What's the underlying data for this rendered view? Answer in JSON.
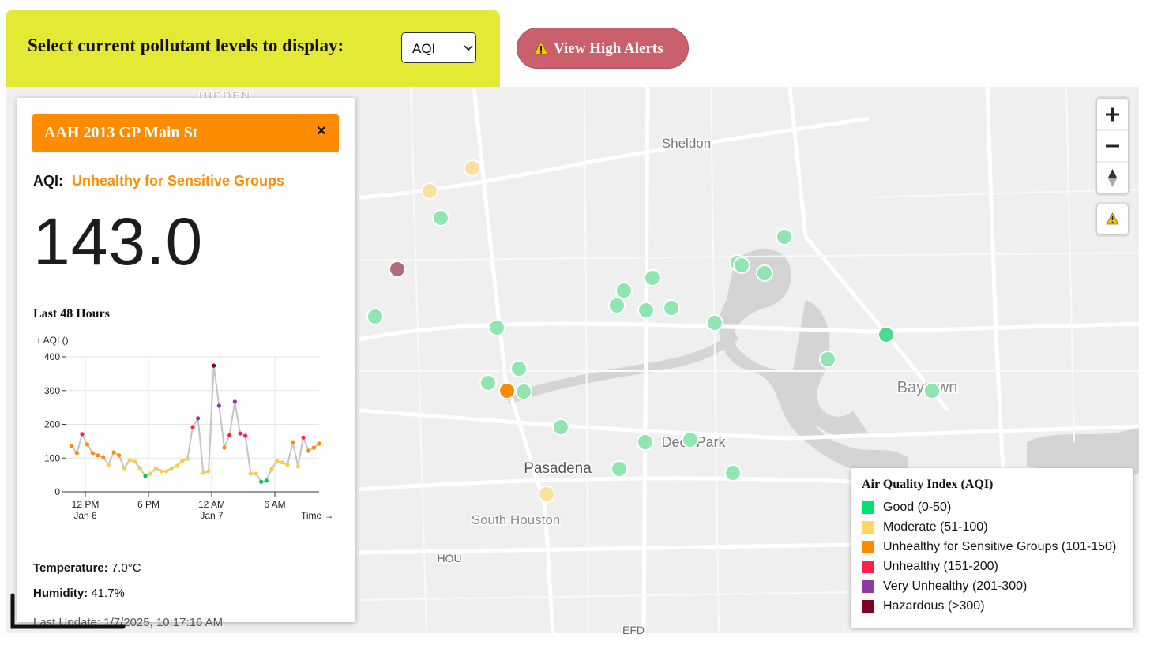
{
  "header": {
    "prompt": "Select current pollutant levels to display:",
    "selected": "AQI",
    "alerts_button": "View High Alerts"
  },
  "map": {
    "labels": [
      "HIDDEN",
      "Sheldon",
      "Baytown",
      "Deer Park",
      "Pasadena",
      "South Houston",
      "HOU",
      "EFD"
    ]
  },
  "panel": {
    "station": "AAH 2013 GP Main St",
    "close": "×",
    "metric_label": "AQI:",
    "category": "Unhealthy for Sensitive Groups",
    "value": "143.0",
    "history_title": "Last 48 Hours",
    "chart_data": {
      "type": "line",
      "y_label": "↑ AQI ()",
      "x_label": "Time →",
      "line_color": "#c4c4c4",
      "grid": true,
      "x": [
        10.7,
        11.2,
        11.7,
        12.2,
        12.7,
        13.2,
        13.7,
        14.2,
        14.7,
        15.2,
        15.7,
        16.2,
        16.7,
        17.2,
        17.7,
        18.2,
        18.7,
        19.2,
        19.7,
        20.2,
        20.7,
        21.2,
        21.7,
        22.2,
        22.7,
        23.2,
        23.7,
        24.2,
        24.7,
        25.2,
        25.7,
        26.2,
        26.7,
        27.2,
        27.7,
        28.2,
        28.7,
        29.2,
        29.7,
        30.2,
        30.7,
        31.2,
        31.7,
        32.2,
        32.7,
        33.2,
        33.7,
        34.2
      ],
      "values": [
        136,
        115,
        171,
        140,
        115,
        108,
        103,
        80,
        117,
        108,
        70,
        94,
        89,
        70,
        47,
        54,
        70,
        61,
        61,
        70,
        77,
        91,
        98,
        192,
        218,
        56,
        61,
        374,
        255,
        131,
        168,
        267,
        173,
        166,
        54,
        54,
        30,
        33,
        68,
        91,
        87,
        80,
        147,
        75,
        161,
        122,
        131,
        143
      ],
      "point_colors": [
        "#ff8c00",
        "#ff8c00",
        "#ff1f4b",
        "#ff8c00",
        "#ff8c00",
        "#ff8c00",
        "#ff8c00",
        "#f9cd3c",
        "#ff8c00",
        "#ff8c00",
        "#f9cd3c",
        "#f9cd3c",
        "#f9cd3c",
        "#f9cd3c",
        "#00c957",
        "#f9cd3c",
        "#f9cd3c",
        "#f9cd3c",
        "#f9cd3c",
        "#f9cd3c",
        "#f9cd3c",
        "#f9cd3c",
        "#f9cd3c",
        "#ff1f4b",
        "#8e3b9e",
        "#f9cd3c",
        "#f9cd3c",
        "#7e0023",
        "#8e3b9e",
        "#ff8c00",
        "#ff1f4b",
        "#8e3b9e",
        "#ff1f4b",
        "#ff1f4b",
        "#f9cd3c",
        "#f9cd3c",
        "#00c957",
        "#00c957",
        "#f9cd3c",
        "#f9cd3c",
        "#f9cd3c",
        "#f9cd3c",
        "#ff8c00",
        "#f9cd3c",
        "#ff1f4b",
        "#ff8c00",
        "#ff8c00",
        "#ff8c00"
      ],
      "xlim": [
        10.2,
        34.2
      ],
      "ylim": [
        0,
        400
      ],
      "yticks": [
        0,
        100,
        200,
        300,
        400
      ],
      "xticks": [
        {
          "value": 12,
          "label": "12 PM\nJan 6"
        },
        {
          "value": 18,
          "label": "6 PM"
        },
        {
          "value": 24,
          "label": "12 AM\nJan 7"
        },
        {
          "value": 30,
          "label": "6 AM"
        }
      ]
    },
    "temperature_label": "Temperature:",
    "temperature": "7.0°C",
    "humidity_label": "Humidity:",
    "humidity": "41.7%",
    "last_update": "Last Update: 1/7/2025, 10:17:16 AM"
  },
  "legend": {
    "title": "Air Quality Index (AQI)",
    "items": [
      {
        "label": "Good (0-50)",
        "color": "#00e26b"
      },
      {
        "label": "Moderate (51-100)",
        "color": "#fdd663"
      },
      {
        "label": "Unhealthy for Sensitive Groups (101-150)",
        "color": "#ff8c00"
      },
      {
        "label": "Unhealthy (151-200)",
        "color": "#ff1f4b"
      },
      {
        "label": "Very Unhealthy (201-300)",
        "color": "#8e3b9e"
      },
      {
        "label": "Hazardous (>300)",
        "color": "#7e0023"
      }
    ]
  }
}
